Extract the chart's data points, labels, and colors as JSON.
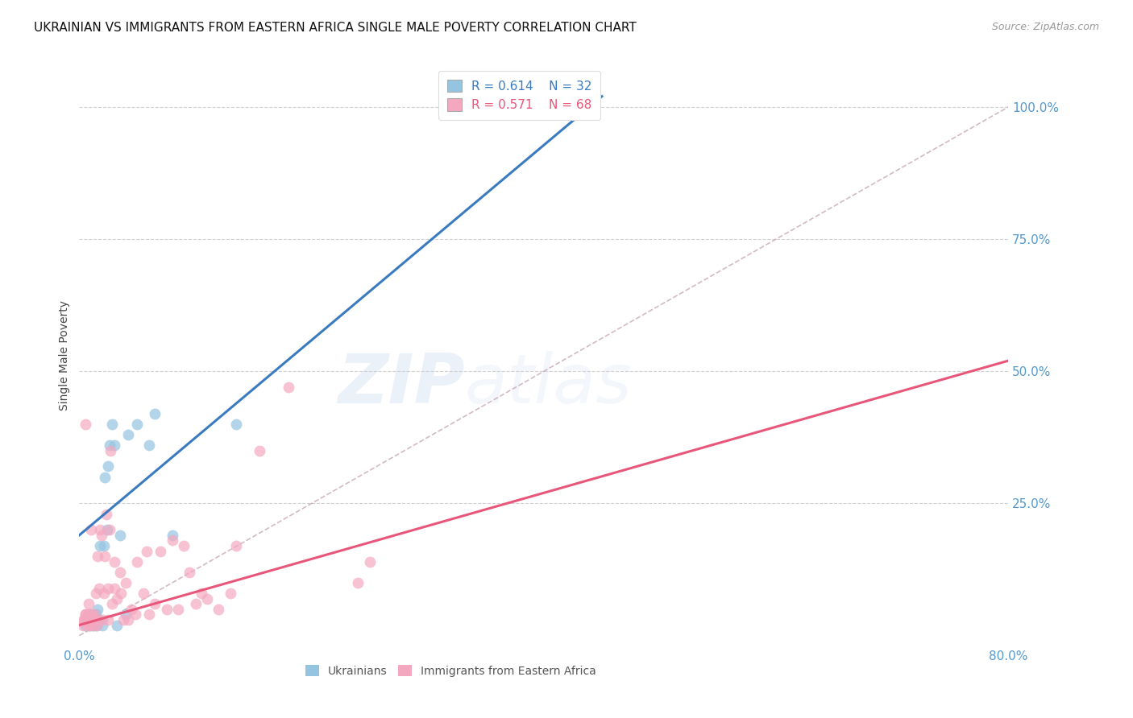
{
  "title": "UKRAINIAN VS IMMIGRANTS FROM EASTERN AFRICA SINGLE MALE POVERTY CORRELATION CHART",
  "source": "Source: ZipAtlas.com",
  "ylabel": "Single Male Poverty",
  "xlim": [
    0.0,
    0.8
  ],
  "ylim": [
    -0.02,
    1.08
  ],
  "yticks": [
    0.25,
    0.5,
    0.75,
    1.0
  ],
  "ytick_labels": [
    "25.0%",
    "50.0%",
    "75.0%",
    "100.0%"
  ],
  "xticks": [
    0.0,
    0.1,
    0.2,
    0.3,
    0.4,
    0.5,
    0.6,
    0.7,
    0.8
  ],
  "xtick_labels": [
    "0.0%",
    "",
    "",
    "",
    "",
    "",
    "",
    "",
    "80.0%"
  ],
  "legend_r_blue": "R = 0.614",
  "legend_n_blue": "N = 32",
  "legend_r_pink": "R = 0.571",
  "legend_n_pink": "N = 68",
  "blue_color": "#94c4e0",
  "pink_color": "#f4a8c0",
  "blue_line_color": "#3a7bbf",
  "pink_line_color": "#e8567a",
  "diagonal_color": "#c8a8b8",
  "background_color": "#ffffff",
  "grid_color": "#cccccc",
  "tick_label_color": "#5599cc",
  "blue_scatter_x": [
    0.005,
    0.007,
    0.008,
    0.01,
    0.01,
    0.01,
    0.012,
    0.013,
    0.014,
    0.015,
    0.016,
    0.016,
    0.017,
    0.018,
    0.02,
    0.021,
    0.022,
    0.024,
    0.025,
    0.026,
    0.028,
    0.03,
    0.032,
    0.035,
    0.04,
    0.042,
    0.05,
    0.06,
    0.065,
    0.08,
    0.135,
    0.38
  ],
  "blue_scatter_y": [
    0.02,
    0.03,
    0.03,
    0.02,
    0.03,
    0.04,
    0.02,
    0.03,
    0.04,
    0.02,
    0.03,
    0.05,
    0.03,
    0.17,
    0.02,
    0.17,
    0.3,
    0.2,
    0.32,
    0.36,
    0.4,
    0.36,
    0.02,
    0.19,
    0.04,
    0.38,
    0.4,
    0.36,
    0.42,
    0.19,
    0.4,
    1.0
  ],
  "pink_scatter_x": [
    0.003,
    0.004,
    0.004,
    0.005,
    0.005,
    0.005,
    0.005,
    0.006,
    0.007,
    0.007,
    0.008,
    0.008,
    0.008,
    0.009,
    0.01,
    0.01,
    0.01,
    0.011,
    0.012,
    0.013,
    0.013,
    0.014,
    0.015,
    0.016,
    0.016,
    0.017,
    0.018,
    0.019,
    0.02,
    0.021,
    0.022,
    0.023,
    0.025,
    0.025,
    0.026,
    0.027,
    0.028,
    0.03,
    0.03,
    0.032,
    0.035,
    0.036,
    0.038,
    0.04,
    0.042,
    0.045,
    0.048,
    0.05,
    0.055,
    0.058,
    0.06,
    0.065,
    0.07,
    0.075,
    0.08,
    0.085,
    0.09,
    0.095,
    0.1,
    0.105,
    0.11,
    0.12,
    0.13,
    0.135,
    0.155,
    0.18,
    0.24,
    0.25
  ],
  "pink_scatter_y": [
    0.02,
    0.03,
    0.03,
    0.03,
    0.04,
    0.04,
    0.4,
    0.03,
    0.03,
    0.04,
    0.02,
    0.04,
    0.06,
    0.02,
    0.03,
    0.04,
    0.2,
    0.03,
    0.02,
    0.03,
    0.04,
    0.08,
    0.02,
    0.03,
    0.15,
    0.09,
    0.2,
    0.19,
    0.03,
    0.08,
    0.15,
    0.23,
    0.03,
    0.09,
    0.2,
    0.35,
    0.06,
    0.09,
    0.14,
    0.07,
    0.12,
    0.08,
    0.03,
    0.1,
    0.03,
    0.05,
    0.04,
    0.14,
    0.08,
    0.16,
    0.04,
    0.06,
    0.16,
    0.05,
    0.18,
    0.05,
    0.17,
    0.12,
    0.06,
    0.08,
    0.07,
    0.05,
    0.08,
    0.17,
    0.35,
    0.47,
    0.1,
    0.14
  ],
  "blue_line_x": [
    0.0,
    0.45
  ],
  "blue_line_y": [
    0.19,
    1.02
  ],
  "pink_line_x": [
    0.0,
    0.8
  ],
  "pink_line_y": [
    0.02,
    0.52
  ],
  "diag_line_x": [
    0.0,
    0.8
  ],
  "diag_line_y": [
    0.0,
    1.0
  ]
}
